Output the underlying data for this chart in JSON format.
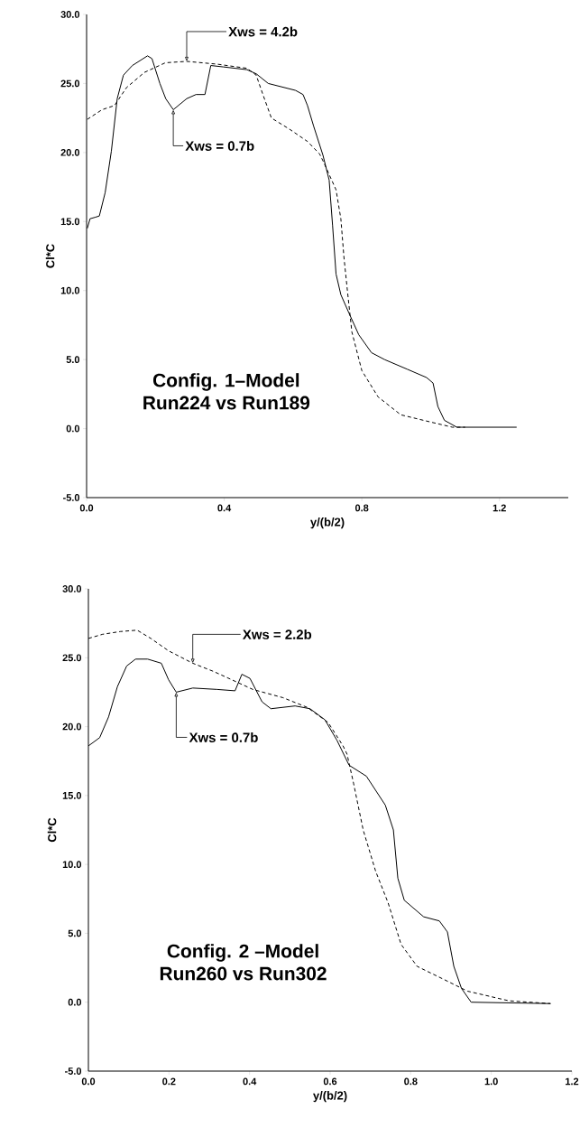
{
  "chart_data": [
    {
      "type": "line",
      "title": "Config. 1–Model",
      "subtitle": "Run224 vs Run189",
      "xlabel": "y/(b/2)",
      "ylabel": "Cl*C",
      "xlim": [
        0,
        1.4
      ],
      "ylim": [
        -5,
        30
      ],
      "xticks": [
        {
          "value": 0,
          "label": "0.0"
        },
        {
          "value": 0.4,
          "label": "0.4"
        },
        {
          "value": 0.8,
          "label": "0.8"
        },
        {
          "value": 1.2,
          "label": "1.2"
        }
      ],
      "yticks": [
        {
          "value": -5,
          "label": "-5.0"
        },
        {
          "value": 0,
          "label": "0.0"
        },
        {
          "value": 5,
          "label": "5.0"
        },
        {
          "value": 10,
          "label": "10.0"
        },
        {
          "value": 15,
          "label": "15.0"
        },
        {
          "value": 20,
          "label": "20.0"
        },
        {
          "value": 25,
          "label": "25.0"
        },
        {
          "value": 30,
          "label": "30.0"
        }
      ],
      "series": [
        {
          "color": "#000000",
          "line_style": "solid",
          "x": [
            0.002,
            0.01,
            0.024,
            0.037,
            0.054,
            0.072,
            0.089,
            0.107,
            0.133,
            0.177,
            0.19,
            0.213,
            0.23,
            0.252,
            0.291,
            0.318,
            0.344,
            0.361,
            0.397,
            0.466,
            0.493,
            0.528,
            0.607,
            0.629,
            0.642,
            0.66,
            0.687,
            0.705,
            0.715,
            0.725,
            0.739,
            0.762,
            0.791,
            0.828,
            0.866,
            0.932,
            0.988,
            1.007,
            1.021,
            1.04,
            1.076,
            1.25
          ],
          "values": [
            14.5,
            15.2,
            15.3,
            15.4,
            17.1,
            20.1,
            23.9,
            25.6,
            26.3,
            27.0,
            26.8,
            25.0,
            23.9,
            23.1,
            23.9,
            24.2,
            24.2,
            26.3,
            26.2,
            26.0,
            25.7,
            25.0,
            24.5,
            24.2,
            23.4,
            21.9,
            19.8,
            18.0,
            14.7,
            11.2,
            9.7,
            8.4,
            6.8,
            5.5,
            5.0,
            4.3,
            3.7,
            3.3,
            1.6,
            0.6,
            0.1,
            0.1
          ]
        },
        {
          "color": "#000000",
          "line_style": "dashed",
          "x": [
            0.002,
            0.045,
            0.081,
            0.116,
            0.168,
            0.229,
            0.291,
            0.379,
            0.466,
            0.493,
            0.511,
            0.537,
            0.589,
            0.642,
            0.677,
            0.687,
            0.725,
            0.739,
            0.748,
            0.758,
            0.771,
            0.8,
            0.847,
            0.913,
            0.979,
            1.063,
            1.1
          ],
          "values": [
            22.4,
            23.1,
            23.4,
            24.7,
            25.8,
            26.5,
            26.6,
            26.4,
            26.1,
            25.6,
            24.3,
            22.5,
            21.7,
            20.8,
            19.9,
            19.4,
            17.3,
            15.2,
            12.4,
            10.0,
            7.0,
            4.2,
            2.3,
            1.0,
            0.6,
            0.1,
            0.1
          ]
        }
      ],
      "annotations": [
        {
          "text": "Xws = 4.2b",
          "x": 0.291,
          "y": 26.6
        },
        {
          "text": "Xws = 0.7b",
          "x": 0.252,
          "y": 23.1
        }
      ]
    },
    {
      "type": "line",
      "title": "Config. 2 –Model",
      "subtitle": "Run260 vs Run302",
      "xlabel": "y/(b/2)",
      "ylabel": "Cl*C",
      "xlim": [
        0,
        1.2
      ],
      "ylim": [
        -5,
        30
      ],
      "xticks": [
        {
          "value": 0,
          "label": "0.0"
        },
        {
          "value": 0.2,
          "label": "0.2"
        },
        {
          "value": 0.4,
          "label": "0.4"
        },
        {
          "value": 0.6,
          "label": "0.6"
        },
        {
          "value": 0.8,
          "label": "0.8"
        },
        {
          "value": 1.0,
          "label": "1.0"
        },
        {
          "value": 1.2,
          "label": "1.2"
        }
      ],
      "yticks": [
        {
          "value": -5,
          "label": "-5.0"
        },
        {
          "value": 0,
          "label": "0.0"
        },
        {
          "value": 5,
          "label": "5.0"
        },
        {
          "value": 10,
          "label": "10.0"
        },
        {
          "value": 15,
          "label": "15.0"
        },
        {
          "value": 20,
          "label": "20.0"
        },
        {
          "value": 25,
          "label": "25.0"
        },
        {
          "value": 30,
          "label": "30.0"
        }
      ],
      "series": [
        {
          "color": "#000000",
          "line_style": "solid",
          "x": [
            0.0,
            0.028,
            0.05,
            0.072,
            0.095,
            0.117,
            0.147,
            0.181,
            0.199,
            0.218,
            0.259,
            0.319,
            0.364,
            0.381,
            0.401,
            0.431,
            0.453,
            0.513,
            0.55,
            0.587,
            0.617,
            0.647,
            0.69,
            0.737,
            0.757,
            0.768,
            0.784,
            0.832,
            0.871,
            0.891,
            0.907,
            0.926,
            0.95,
            1.147
          ],
          "values": [
            18.6,
            19.2,
            20.7,
            22.9,
            24.4,
            24.9,
            24.9,
            24.6,
            23.4,
            22.5,
            22.8,
            22.7,
            22.6,
            23.8,
            23.5,
            21.8,
            21.3,
            21.5,
            21.3,
            20.5,
            19.0,
            17.2,
            16.4,
            14.3,
            12.5,
            9.0,
            7.4,
            6.2,
            5.9,
            5.1,
            2.6,
            1.0,
            0.0,
            -0.1
          ]
        },
        {
          "color": "#000000",
          "line_style": "dashed",
          "x": [
            0.0,
            0.035,
            0.079,
            0.121,
            0.155,
            0.199,
            0.259,
            0.311,
            0.356,
            0.408,
            0.483,
            0.543,
            0.595,
            0.632,
            0.642,
            0.658,
            0.682,
            0.713,
            0.744,
            0.776,
            0.816,
            0.879,
            0.941,
            1.044,
            1.147
          ],
          "values": [
            26.4,
            26.7,
            26.9,
            27.0,
            26.4,
            25.5,
            24.6,
            24.0,
            23.4,
            22.7,
            22.1,
            21.4,
            20.3,
            18.6,
            18.0,
            15.9,
            12.5,
            9.5,
            7.2,
            4.2,
            2.6,
            1.7,
            0.8,
            0.1,
            -0.1
          ]
        }
      ],
      "annotations": [
        {
          "text": "Xws = 2.2b",
          "x": 0.259,
          "y": 24.6
        },
        {
          "text": "Xws = 0.7b",
          "x": 0.218,
          "y": 22.5
        }
      ]
    }
  ]
}
